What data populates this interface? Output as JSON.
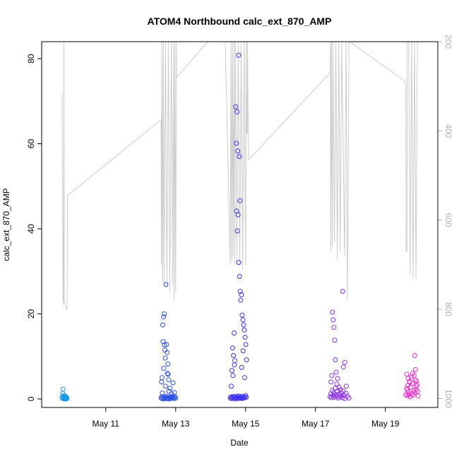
{
  "chart_data": {
    "type": "scatter",
    "title": "ATOM4 Northbound calc_ext_870_AMP",
    "xlabel": "Date",
    "ylabel": "calc_ext_870_AMP",
    "x_axis": {
      "type": "date",
      "range": [
        "2016-05-09T04:00",
        "2016-05-20T12:00"
      ],
      "ticks": [
        {
          "value": "2016-05-11",
          "label": "May 11"
        },
        {
          "value": "2016-05-13",
          "label": "May 13"
        },
        {
          "value": "2016-05-15",
          "label": "May 15"
        },
        {
          "value": "2016-05-17",
          "label": "May 17"
        },
        {
          "value": "2016-05-19",
          "label": "May 19"
        }
      ]
    },
    "y_axis": {
      "range": [
        -2,
        84
      ],
      "ticks": [
        0,
        20,
        40,
        60,
        80
      ]
    },
    "y2_axis": {
      "reversed": true,
      "range": [
        1020,
        200
      ],
      "ticks": [
        200,
        400,
        600,
        800,
        1000
      ],
      "color": "#b0b0b0"
    },
    "grid": false,
    "point_style": "open-circle",
    "line_color": "#cccccc",
    "secondary_line": [
      [
        "2016-05-09T18:00",
        316
      ],
      [
        "2016-05-09T18:40",
        780
      ],
      [
        "2016-05-09T19:00",
        790
      ],
      [
        "2016-05-09T19:15",
        135
      ],
      [
        "2016-05-09T19:30",
        780
      ],
      [
        "2016-05-09T21:00",
        800
      ],
      [
        "2016-05-09T21:30",
        800
      ],
      [
        "2016-05-09T21:45",
        545
      ],
      [
        "2016-05-12T14:00",
        375
      ],
      [
        "2016-05-12T14:15",
        700
      ],
      [
        "2016-05-12T14:30",
        150
      ],
      [
        "2016-05-12T15:00",
        740
      ],
      [
        "2016-05-12T15:30",
        150
      ],
      [
        "2016-05-12T16:00",
        745
      ],
      [
        "2016-05-12T17:00",
        150
      ],
      [
        "2016-05-12T18:00",
        750
      ],
      [
        "2016-05-12T19:00",
        150
      ],
      [
        "2016-05-12T20:00",
        760
      ],
      [
        "2016-05-12T21:00",
        150
      ],
      [
        "2016-05-12T22:00",
        745
      ],
      [
        "2016-05-12T22:30",
        150
      ],
      [
        "2016-05-12T23:00",
        780
      ],
      [
        "2016-05-12T23:30",
        150
      ],
      [
        "2016-05-13T00:00",
        760
      ],
      [
        "2016-05-13T00:30",
        150
      ],
      [
        "2016-05-13T00:40",
        280
      ],
      [
        "2016-05-13T22:00",
        150
      ],
      [
        "2016-05-14T10:00",
        150
      ],
      [
        "2016-05-14T13:30",
        700
      ],
      [
        "2016-05-14T14:00",
        150
      ],
      [
        "2016-05-14T14:30",
        690
      ],
      [
        "2016-05-14T15:00",
        150
      ],
      [
        "2016-05-14T15:30",
        680
      ],
      [
        "2016-05-14T16:00",
        150
      ],
      [
        "2016-05-14T16:30",
        700
      ],
      [
        "2016-05-14T17:00",
        150
      ],
      [
        "2016-05-14T18:00",
        690
      ],
      [
        "2016-05-14T19:00",
        150
      ],
      [
        "2016-05-14T20:00",
        700
      ],
      [
        "2016-05-14T21:00",
        150
      ],
      [
        "2016-05-14T22:00",
        710
      ],
      [
        "2016-05-14T23:00",
        150
      ],
      [
        "2016-05-15T00:00",
        700
      ],
      [
        "2016-05-15T00:30",
        150
      ],
      [
        "2016-05-15T00:45",
        405
      ],
      [
        "2016-05-15T01:10",
        405
      ],
      [
        "2016-05-15T01:20",
        150
      ],
      [
        "2016-05-15T02:00",
        465
      ],
      [
        "2016-05-17T10:00",
        270
      ],
      [
        "2016-05-17T10:15",
        145
      ],
      [
        "2016-05-17T10:30",
        670
      ],
      [
        "2016-05-17T11:00",
        150
      ],
      [
        "2016-05-17T11:30",
        660
      ],
      [
        "2016-05-17T12:00",
        150
      ],
      [
        "2016-05-17T13:00",
        650
      ],
      [
        "2016-05-17T14:00",
        150
      ],
      [
        "2016-05-17T15:00",
        690
      ],
      [
        "2016-05-17T16:00",
        150
      ],
      [
        "2016-05-17T17:00",
        670
      ],
      [
        "2016-05-17T18:00",
        150
      ],
      [
        "2016-05-17T20:00",
        680
      ],
      [
        "2016-05-17T21:00",
        150
      ],
      [
        "2016-05-17T22:00",
        780
      ],
      [
        "2016-05-17T23:00",
        150
      ],
      [
        "2016-05-17T23:30",
        160
      ],
      [
        "2016-05-19T14:00",
        290
      ],
      [
        "2016-05-19T14:15",
        670
      ],
      [
        "2016-05-19T14:45",
        670
      ],
      [
        "2016-05-19T15:00",
        150
      ],
      [
        "2016-05-19T16:00",
        150
      ],
      [
        "2016-05-19T17:00",
        720
      ],
      [
        "2016-05-19T18:00",
        150
      ],
      [
        "2016-05-19T19:00",
        730
      ],
      [
        "2016-05-19T20:00",
        150
      ],
      [
        "2016-05-19T21:00",
        730
      ],
      [
        "2016-05-19T22:00",
        150
      ]
    ],
    "series": [
      {
        "color": "#1e9be6",
        "points": [
          [
            "2016-05-09T18:00",
            0.2
          ],
          [
            "2016-05-09T18:20",
            0.6
          ],
          [
            "2016-05-09T18:30",
            1.3
          ],
          [
            "2016-05-09T18:40",
            2.3
          ],
          [
            "2016-05-09T18:50",
            0.3
          ],
          [
            "2016-05-09T19:00",
            0.1
          ],
          [
            "2016-05-09T19:10",
            0.5
          ],
          [
            "2016-05-09T19:20",
            0.8
          ],
          [
            "2016-05-09T19:30",
            0.2
          ],
          [
            "2016-05-09T19:40",
            0.0
          ],
          [
            "2016-05-09T19:50",
            0.4
          ],
          [
            "2016-05-09T20:00",
            0.3
          ],
          [
            "2016-05-09T20:10",
            0.1
          ],
          [
            "2016-05-09T20:20",
            0.6
          ],
          [
            "2016-05-09T20:30",
            0.2
          ],
          [
            "2016-05-09T20:40",
            0.3
          ],
          [
            "2016-05-09T20:50",
            0.0
          ],
          [
            "2016-05-09T21:00",
            0.4
          ],
          [
            "2016-05-09T21:10",
            0.2
          ],
          [
            "2016-05-09T21:20",
            0.1
          ]
        ]
      },
      {
        "color": "#2a4fe8",
        "points": [
          [
            "2016-05-12T14:00",
            0.3
          ],
          [
            "2016-05-12T14:30",
            0.1
          ],
          [
            "2016-05-12T15:00",
            0.5
          ],
          [
            "2016-05-12T15:30",
            0.2
          ],
          [
            "2016-05-12T16:00",
            0.0
          ],
          [
            "2016-05-12T16:30",
            0.4
          ],
          [
            "2016-05-12T17:00",
            0.2
          ],
          [
            "2016-05-12T17:30",
            0.6
          ],
          [
            "2016-05-12T18:00",
            0.1
          ],
          [
            "2016-05-12T18:30",
            0.3
          ],
          [
            "2016-05-12T19:00",
            0.2
          ],
          [
            "2016-05-12T19:30",
            0.0
          ],
          [
            "2016-05-12T20:00",
            0.5
          ],
          [
            "2016-05-12T20:30",
            0.1
          ],
          [
            "2016-05-12T21:00",
            0.4
          ],
          [
            "2016-05-12T21:30",
            0.2
          ],
          [
            "2016-05-12T22:00",
            0.6
          ],
          [
            "2016-05-12T22:30",
            0.3
          ],
          [
            "2016-05-12T23:00",
            0.1
          ],
          [
            "2016-05-12T23:30",
            0.5
          ],
          [
            "2016-05-13T00:00",
            0.2
          ],
          [
            "2016-05-12T14:20",
            4.0
          ],
          [
            "2016-05-12T14:40",
            5.0
          ],
          [
            "2016-05-12T15:10",
            17.4
          ],
          [
            "2016-05-12T15:20",
            13.5
          ],
          [
            "2016-05-12T15:40",
            19.3
          ],
          [
            "2016-05-12T16:10",
            20.0
          ],
          [
            "2016-05-12T16:20",
            12.7
          ],
          [
            "2016-05-12T16:40",
            11.5
          ],
          [
            "2016-05-12T17:00",
            3.0
          ],
          [
            "2016-05-12T17:20",
            26.9
          ],
          [
            "2016-05-12T17:40",
            12.8
          ],
          [
            "2016-05-12T18:10",
            10.9
          ],
          [
            "2016-05-12T18:20",
            6.0
          ],
          [
            "2016-05-12T18:40",
            8.2
          ],
          [
            "2016-05-12T19:10",
            4.5
          ],
          [
            "2016-05-12T19:20",
            1.8
          ],
          [
            "2016-05-12T20:10",
            2.5
          ],
          [
            "2016-05-12T21:10",
            1.2
          ],
          [
            "2016-05-12T22:10",
            3.8
          ],
          [
            "2016-05-12T23:10",
            1.5
          ],
          [
            "2016-05-12T16:50",
            9.6
          ],
          [
            "2016-05-12T15:50",
            7.2
          ],
          [
            "2016-05-12T14:50",
            1.4
          ],
          [
            "2016-05-12T18:50",
            5.8
          ]
        ]
      },
      {
        "color": "#3b2ff0",
        "points": [
          [
            "2016-05-14T13:30",
            0.2
          ],
          [
            "2016-05-14T14:00",
            0.5
          ],
          [
            "2016-05-14T14:30",
            0.1
          ],
          [
            "2016-05-14T15:00",
            0.4
          ],
          [
            "2016-05-14T15:30",
            0.2
          ],
          [
            "2016-05-14T16:00",
            0.6
          ],
          [
            "2016-05-14T16:30",
            0.3
          ],
          [
            "2016-05-14T17:00",
            0.0
          ],
          [
            "2016-05-14T17:30",
            0.4
          ],
          [
            "2016-05-14T18:00",
            0.2
          ],
          [
            "2016-05-14T18:30",
            0.7
          ],
          [
            "2016-05-14T19:00",
            0.1
          ],
          [
            "2016-05-14T19:30",
            0.5
          ],
          [
            "2016-05-14T20:00",
            0.3
          ],
          [
            "2016-05-14T20:30",
            0.2
          ],
          [
            "2016-05-14T21:00",
            0.6
          ],
          [
            "2016-05-14T21:30",
            0.1
          ],
          [
            "2016-05-14T22:00",
            0.4
          ],
          [
            "2016-05-14T22:30",
            0.2
          ],
          [
            "2016-05-14T23:00",
            0.5
          ],
          [
            "2016-05-14T23:30",
            0.3
          ],
          [
            "2016-05-15T00:00",
            0.8
          ],
          [
            "2016-05-15T00:30",
            0.4
          ],
          [
            "2016-05-14T14:10",
            3.0
          ],
          [
            "2016-05-14T14:40",
            6.7
          ],
          [
            "2016-05-14T15:10",
            12.0
          ],
          [
            "2016-05-14T15:40",
            10.2
          ],
          [
            "2016-05-14T16:10",
            15.5
          ],
          [
            "2016-05-14T16:40",
            9.0
          ],
          [
            "2016-05-14T17:10",
            68.7
          ],
          [
            "2016-05-14T17:40",
            60.1
          ],
          [
            "2016-05-14T18:10",
            67.5
          ],
          [
            "2016-05-14T18:40",
            58.3
          ],
          [
            "2016-05-14T19:10",
            80.8
          ],
          [
            "2016-05-14T19:40",
            57.0
          ],
          [
            "2016-05-14T20:10",
            46.6
          ],
          [
            "2016-05-14T17:50",
            44.2
          ],
          [
            "2016-05-14T18:50",
            43.3
          ],
          [
            "2016-05-14T18:20",
            39.5
          ],
          [
            "2016-05-14T19:20",
            32.1
          ],
          [
            "2016-05-14T19:50",
            28.8
          ],
          [
            "2016-05-14T20:20",
            25.3
          ],
          [
            "2016-05-14T20:40",
            23.2
          ],
          [
            "2016-05-14T21:10",
            24.5
          ],
          [
            "2016-05-14T21:40",
            19.7
          ],
          [
            "2016-05-14T22:10",
            18.6
          ],
          [
            "2016-05-14T22:40",
            17.4
          ],
          [
            "2016-05-14T23:10",
            16.2
          ],
          [
            "2016-05-14T23:40",
            14.5
          ],
          [
            "2016-05-15T00:10",
            12.8
          ],
          [
            "2016-05-15T00:40",
            9.2
          ],
          [
            "2016-05-14T16:20",
            8.0
          ],
          [
            "2016-05-14T15:20",
            5.5
          ],
          [
            "2016-05-14T21:20",
            7.4
          ],
          [
            "2016-05-14T22:20",
            11.3
          ],
          [
            "2016-05-14T23:20",
            5.0
          ]
        ]
      },
      {
        "color": "#8a2ef0",
        "points": [
          [
            "2016-05-17T10:00",
            0.5
          ],
          [
            "2016-05-17T10:30",
            1.2
          ],
          [
            "2016-05-17T11:00",
            0.3
          ],
          [
            "2016-05-17T11:30",
            2.0
          ],
          [
            "2016-05-17T12:00",
            0.8
          ],
          [
            "2016-05-17T12:30",
            1.5
          ],
          [
            "2016-05-17T13:00",
            0.4
          ],
          [
            "2016-05-17T13:30",
            2.5
          ],
          [
            "2016-05-17T14:00",
            1.0
          ],
          [
            "2016-05-17T14:30",
            0.6
          ],
          [
            "2016-05-17T15:00",
            1.8
          ],
          [
            "2016-05-17T15:30",
            0.2
          ],
          [
            "2016-05-17T16:00",
            1.1
          ],
          [
            "2016-05-17T16:30",
            0.5
          ],
          [
            "2016-05-17T17:00",
            2.2
          ],
          [
            "2016-05-17T17:30",
            0.7
          ],
          [
            "2016-05-17T18:00",
            1.4
          ],
          [
            "2016-05-17T18:30",
            0.3
          ],
          [
            "2016-05-17T19:00",
            1.9
          ],
          [
            "2016-05-17T19:30",
            0.9
          ],
          [
            "2016-05-17T20:00",
            0.1
          ],
          [
            "2016-05-17T21:00",
            1.3
          ],
          [
            "2016-05-17T22:00",
            0.6
          ],
          [
            "2016-05-17T23:00",
            0.2
          ],
          [
            "2016-05-17T10:40",
            4.0
          ],
          [
            "2016-05-17T11:10",
            5.5
          ],
          [
            "2016-05-17T11:40",
            20.4
          ],
          [
            "2016-05-17T12:10",
            18.6
          ],
          [
            "2016-05-17T12:40",
            16.8
          ],
          [
            "2016-05-17T13:10",
            13.8
          ],
          [
            "2016-05-17T13:40",
            9.2
          ],
          [
            "2016-05-17T14:10",
            6.3
          ],
          [
            "2016-05-17T14:40",
            3.5
          ],
          [
            "2016-05-17T15:10",
            4.8
          ],
          [
            "2016-05-17T18:40",
            25.3
          ],
          [
            "2016-05-17T19:10",
            7.5
          ],
          [
            "2016-05-17T20:10",
            8.6
          ],
          [
            "2016-05-17T21:10",
            3.0
          ],
          [
            "2016-05-17T16:10",
            2.8
          ]
        ]
      },
      {
        "color": "#f02ccc",
        "points": [
          [
            "2016-05-19T14:00",
            1.0
          ],
          [
            "2016-05-19T14:30",
            2.5
          ],
          [
            "2016-05-19T15:00",
            0.8
          ],
          [
            "2016-05-19T15:30",
            3.2
          ],
          [
            "2016-05-19T16:00",
            1.6
          ],
          [
            "2016-05-19T16:30",
            4.1
          ],
          [
            "2016-05-19T17:00",
            0.5
          ],
          [
            "2016-05-19T17:30",
            2.8
          ],
          [
            "2016-05-19T18:00",
            1.2
          ],
          [
            "2016-05-19T18:30",
            3.6
          ],
          [
            "2016-05-19T19:00",
            0.9
          ],
          [
            "2016-05-19T19:30",
            2.0
          ],
          [
            "2016-05-19T20:00",
            1.5
          ],
          [
            "2016-05-19T20:30",
            4.5
          ],
          [
            "2016-05-19T21:00",
            2.2
          ],
          [
            "2016-05-19T21:30",
            3.0
          ],
          [
            "2016-05-19T22:00",
            1.8
          ],
          [
            "2016-05-19T22:30",
            0.7
          ],
          [
            "2016-05-19T14:40",
            5.8
          ],
          [
            "2016-05-19T15:40",
            4.9
          ],
          [
            "2016-05-19T16:40",
            3.9
          ],
          [
            "2016-05-19T17:40",
            5.2
          ],
          [
            "2016-05-19T18:40",
            6.0
          ],
          [
            "2016-05-19T19:40",
            5.5
          ],
          [
            "2016-05-19T20:10",
            10.2
          ],
          [
            "2016-05-19T20:40",
            6.9
          ],
          [
            "2016-05-19T21:10",
            4.2
          ],
          [
            "2016-05-19T21:40",
            3.4
          ],
          [
            "2016-05-19T15:10",
            2.1
          ],
          [
            "2016-05-19T16:10",
            1.0
          ]
        ]
      }
    ]
  }
}
